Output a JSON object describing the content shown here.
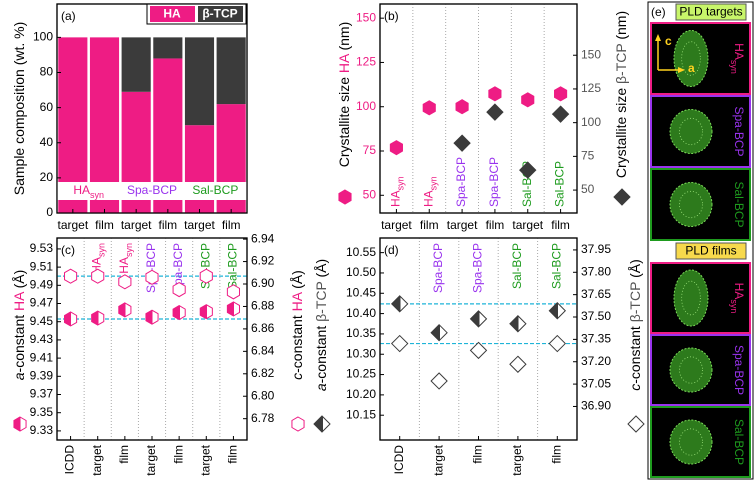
{
  "chart_data": [
    {
      "type": "bar",
      "stacked": true,
      "panel": "(a)",
      "ylabel": [
        {
          "text": "Sample composition (wt. %)"
        }
      ],
      "categories": [
        "target",
        "film",
        "target",
        "film",
        "target",
        "film"
      ],
      "groups": [
        {
          "label": "HA",
          "sub": "syn",
          "color": "#ee1c84"
        },
        {
          "label": "Spa-BCP",
          "color": "#9933ee"
        },
        {
          "label": "Sal-BCP",
          "color": "#1e9b1e"
        }
      ],
      "series": [
        {
          "name": "HA",
          "color": "#ee1c84",
          "values": [
            100,
            100,
            69,
            88,
            50,
            62
          ]
        },
        {
          "name": "β-TCP",
          "color": "#3b3b3b",
          "values": [
            0,
            0,
            31,
            12,
            50,
            38
          ]
        }
      ],
      "ylim": [
        0,
        119
      ],
      "yticks": [
        0,
        20,
        40,
        60,
        80,
        100
      ]
    },
    {
      "type": "scatter",
      "panel": "(b)",
      "ylabel": [
        {
          "text": "Crystallite size "
        },
        {
          "text": "HA",
          "color": "#ee1c84"
        },
        {
          "text": " (nm)"
        }
      ],
      "y2label": [
        {
          "text": "Crystallite size "
        },
        {
          "text": "β-TCP",
          "color": "#555555"
        },
        {
          "text": " (nm)"
        }
      ],
      "categories": [
        "target",
        "film",
        "target",
        "film",
        "target",
        "film"
      ],
      "column_labels": [
        {
          "label": "HA",
          "sub": "syn",
          "color": "#ee1c84"
        },
        {
          "label": "HA",
          "sub": "syn",
          "color": "#ee1c84"
        },
        {
          "label": "Spa-BCP",
          "color": "#9933ee"
        },
        {
          "label": "Spa-BCP",
          "color": "#9933ee"
        },
        {
          "label": "Sal-BCP",
          "color": "#1e9b1e"
        },
        {
          "label": "Sal-BCP",
          "color": "#1e9b1e"
        }
      ],
      "column_label_position": "bottom",
      "series": [
        {
          "color": "#ee1c84",
          "marker": "hexagon",
          "fill": "solid",
          "axis": "y",
          "values": [
            76.9,
            99.4,
            100,
            107.3,
            103.9,
            107.3
          ]
        },
        {
          "color": "#3b3b3b",
          "marker": "diamond",
          "fill": "solid",
          "axis": "y2",
          "values": [
            null,
            null,
            84.8,
            107.8,
            64.8,
            106.3
          ]
        }
      ],
      "ylim": [
        40,
        158
      ],
      "yticks": [
        50,
        75,
        100,
        125,
        150
      ],
      "ytick_color": "#ee1c84",
      "y2lim": [
        33,
        188
      ],
      "y2ticks": [
        50,
        75,
        100,
        125,
        150
      ],
      "y2tick_color": "#555555"
    },
    {
      "type": "scatter",
      "panel": "(c)",
      "reference_lines": true,
      "xtick_rotation": 90,
      "ylabel": [
        {
          "text": "a",
          "italic": true
        },
        {
          "text": "-constant "
        },
        {
          "text": "HA",
          "color": "#ee1c84"
        },
        {
          "text": " (Å)"
        }
      ],
      "y2label": [
        {
          "text": "c",
          "italic": true
        },
        {
          "text": "-constant "
        },
        {
          "text": "HA",
          "color": "#ee1c84"
        },
        {
          "text": " (Å)"
        }
      ],
      "categories": [
        "ICDD",
        "target",
        "film",
        "target",
        "film",
        "target",
        "film"
      ],
      "column_labels": [
        null,
        {
          "label": "HA",
          "sub": "syn",
          "color": "#ee1c84"
        },
        {
          "label": "HA",
          "sub": "syn",
          "color": "#ee1c84"
        },
        {
          "label": "Spa-BCP",
          "color": "#9933ee"
        },
        {
          "label": "Spa-BCP",
          "color": "#9933ee"
        },
        {
          "label": "Sal-BCP",
          "color": "#1e9b1e"
        },
        {
          "label": "Sal-BCP",
          "color": "#1e9b1e"
        }
      ],
      "column_label_position": "top",
      "series": [
        {
          "color": "#ee1c84",
          "marker": "hexagon",
          "fill": "half",
          "axis": "y",
          "values": [
            9.453,
            9.454,
            9.463,
            9.455,
            9.46,
            9.461,
            9.464
          ]
        },
        {
          "color": "#ee1c84",
          "marker": "hexagon",
          "fill": "open",
          "axis": "y2",
          "values": [
            6.907,
            6.907,
            6.902,
            6.906,
            6.895,
            6.907,
            6.893
          ]
        }
      ],
      "ylim": [
        9.32,
        9.542
      ],
      "yticks": [
        9.33,
        9.35,
        9.37,
        9.39,
        9.41,
        9.43,
        9.45,
        9.47,
        9.49,
        9.51,
        9.53
      ],
      "y2lim": [
        6.761,
        6.941
      ],
      "y2ticks": [
        6.78,
        {
          "value": 6.8,
          "label": "6.80"
        },
        6.82,
        6.84,
        6.86,
        6.88,
        {
          "value": 6.9,
          "label": "6.90"
        },
        6.92,
        6.94
      ]
    },
    {
      "type": "scatter",
      "panel": "(d)",
      "reference_lines": true,
      "xtick_rotation": 90,
      "ylabel": [
        {
          "text": "a",
          "italic": true
        },
        {
          "text": "-constant "
        },
        {
          "text": "β-TCP",
          "color": "#555555"
        },
        {
          "text": " (Å)"
        }
      ],
      "y2label": [
        {
          "text": "c",
          "italic": true
        },
        {
          "text": "-constant "
        },
        {
          "text": "β-TCP",
          "color": "#555555"
        },
        {
          "text": " (Å)"
        }
      ],
      "categories": [
        "ICDD",
        "target",
        "film",
        "target",
        "film"
      ],
      "column_labels": [
        null,
        {
          "label": "Spa-BCP",
          "color": "#9933ee"
        },
        {
          "label": "Spa-BCP",
          "color": "#9933ee"
        },
        {
          "label": "Sal-BCP",
          "color": "#1e9b1e"
        },
        {
          "label": "Sal-BCP",
          "color": "#1e9b1e"
        }
      ],
      "column_label_position": "top",
      "series": [
        {
          "color": "#3b3b3b",
          "marker": "diamond",
          "fill": "half",
          "axis": "y",
          "values": [
            10.424,
            10.353,
            10.387,
            10.375,
            10.407
          ]
        },
        {
          "color": "#3b3b3b",
          "marker": "diamond",
          "fill": "open",
          "axis": "y2",
          "values": [
            37.322,
            37.071,
            37.276,
            37.183,
            37.322
          ]
        }
      ],
      "ylim": [
        10.089,
        10.586
      ],
      "yticks": [
        10.15,
        {
          "value": 10.2,
          "label": "10.20"
        },
        10.25,
        {
          "value": 10.3,
          "label": "10.30"
        },
        10.35,
        {
          "value": 10.4,
          "label": "10.40"
        },
        10.45,
        {
          "value": 10.5,
          "label": "10.50"
        },
        10.55
      ],
      "y2lim": [
        36.675,
        38.03
      ],
      "y2ticks": [
        {
          "value": 36.9,
          "label": "36.90"
        },
        37.05,
        {
          "value": 37.2,
          "label": "37.20"
        },
        37.35,
        {
          "value": 37.5,
          "label": "37.50"
        },
        37.65,
        {
          "value": 37.8,
          "label": "37.80"
        },
        37.95
      ]
    }
  ],
  "images": {
    "panel": "(e)",
    "axes": [
      "c",
      "a"
    ],
    "sections": [
      {
        "title": "PLD targets",
        "title_color": "#c8f56a",
        "items": [
          {
            "label": "HA",
            "sub": "syn",
            "color": "#ee1c84"
          },
          {
            "label": "Spa-BCP",
            "color": "#9933ee"
          },
          {
            "label": "Sal-BCP",
            "color": "#1e9b1e"
          }
        ]
      },
      {
        "title": "PLD films",
        "title_color": "#f7d94c",
        "items": [
          {
            "label": "HA",
            "sub": "syn",
            "color": "#ee1c84"
          },
          {
            "label": "Spa-BCP",
            "color": "#9933ee"
          },
          {
            "label": "Sal-BCP",
            "color": "#1e9b1e"
          }
        ]
      }
    ]
  }
}
